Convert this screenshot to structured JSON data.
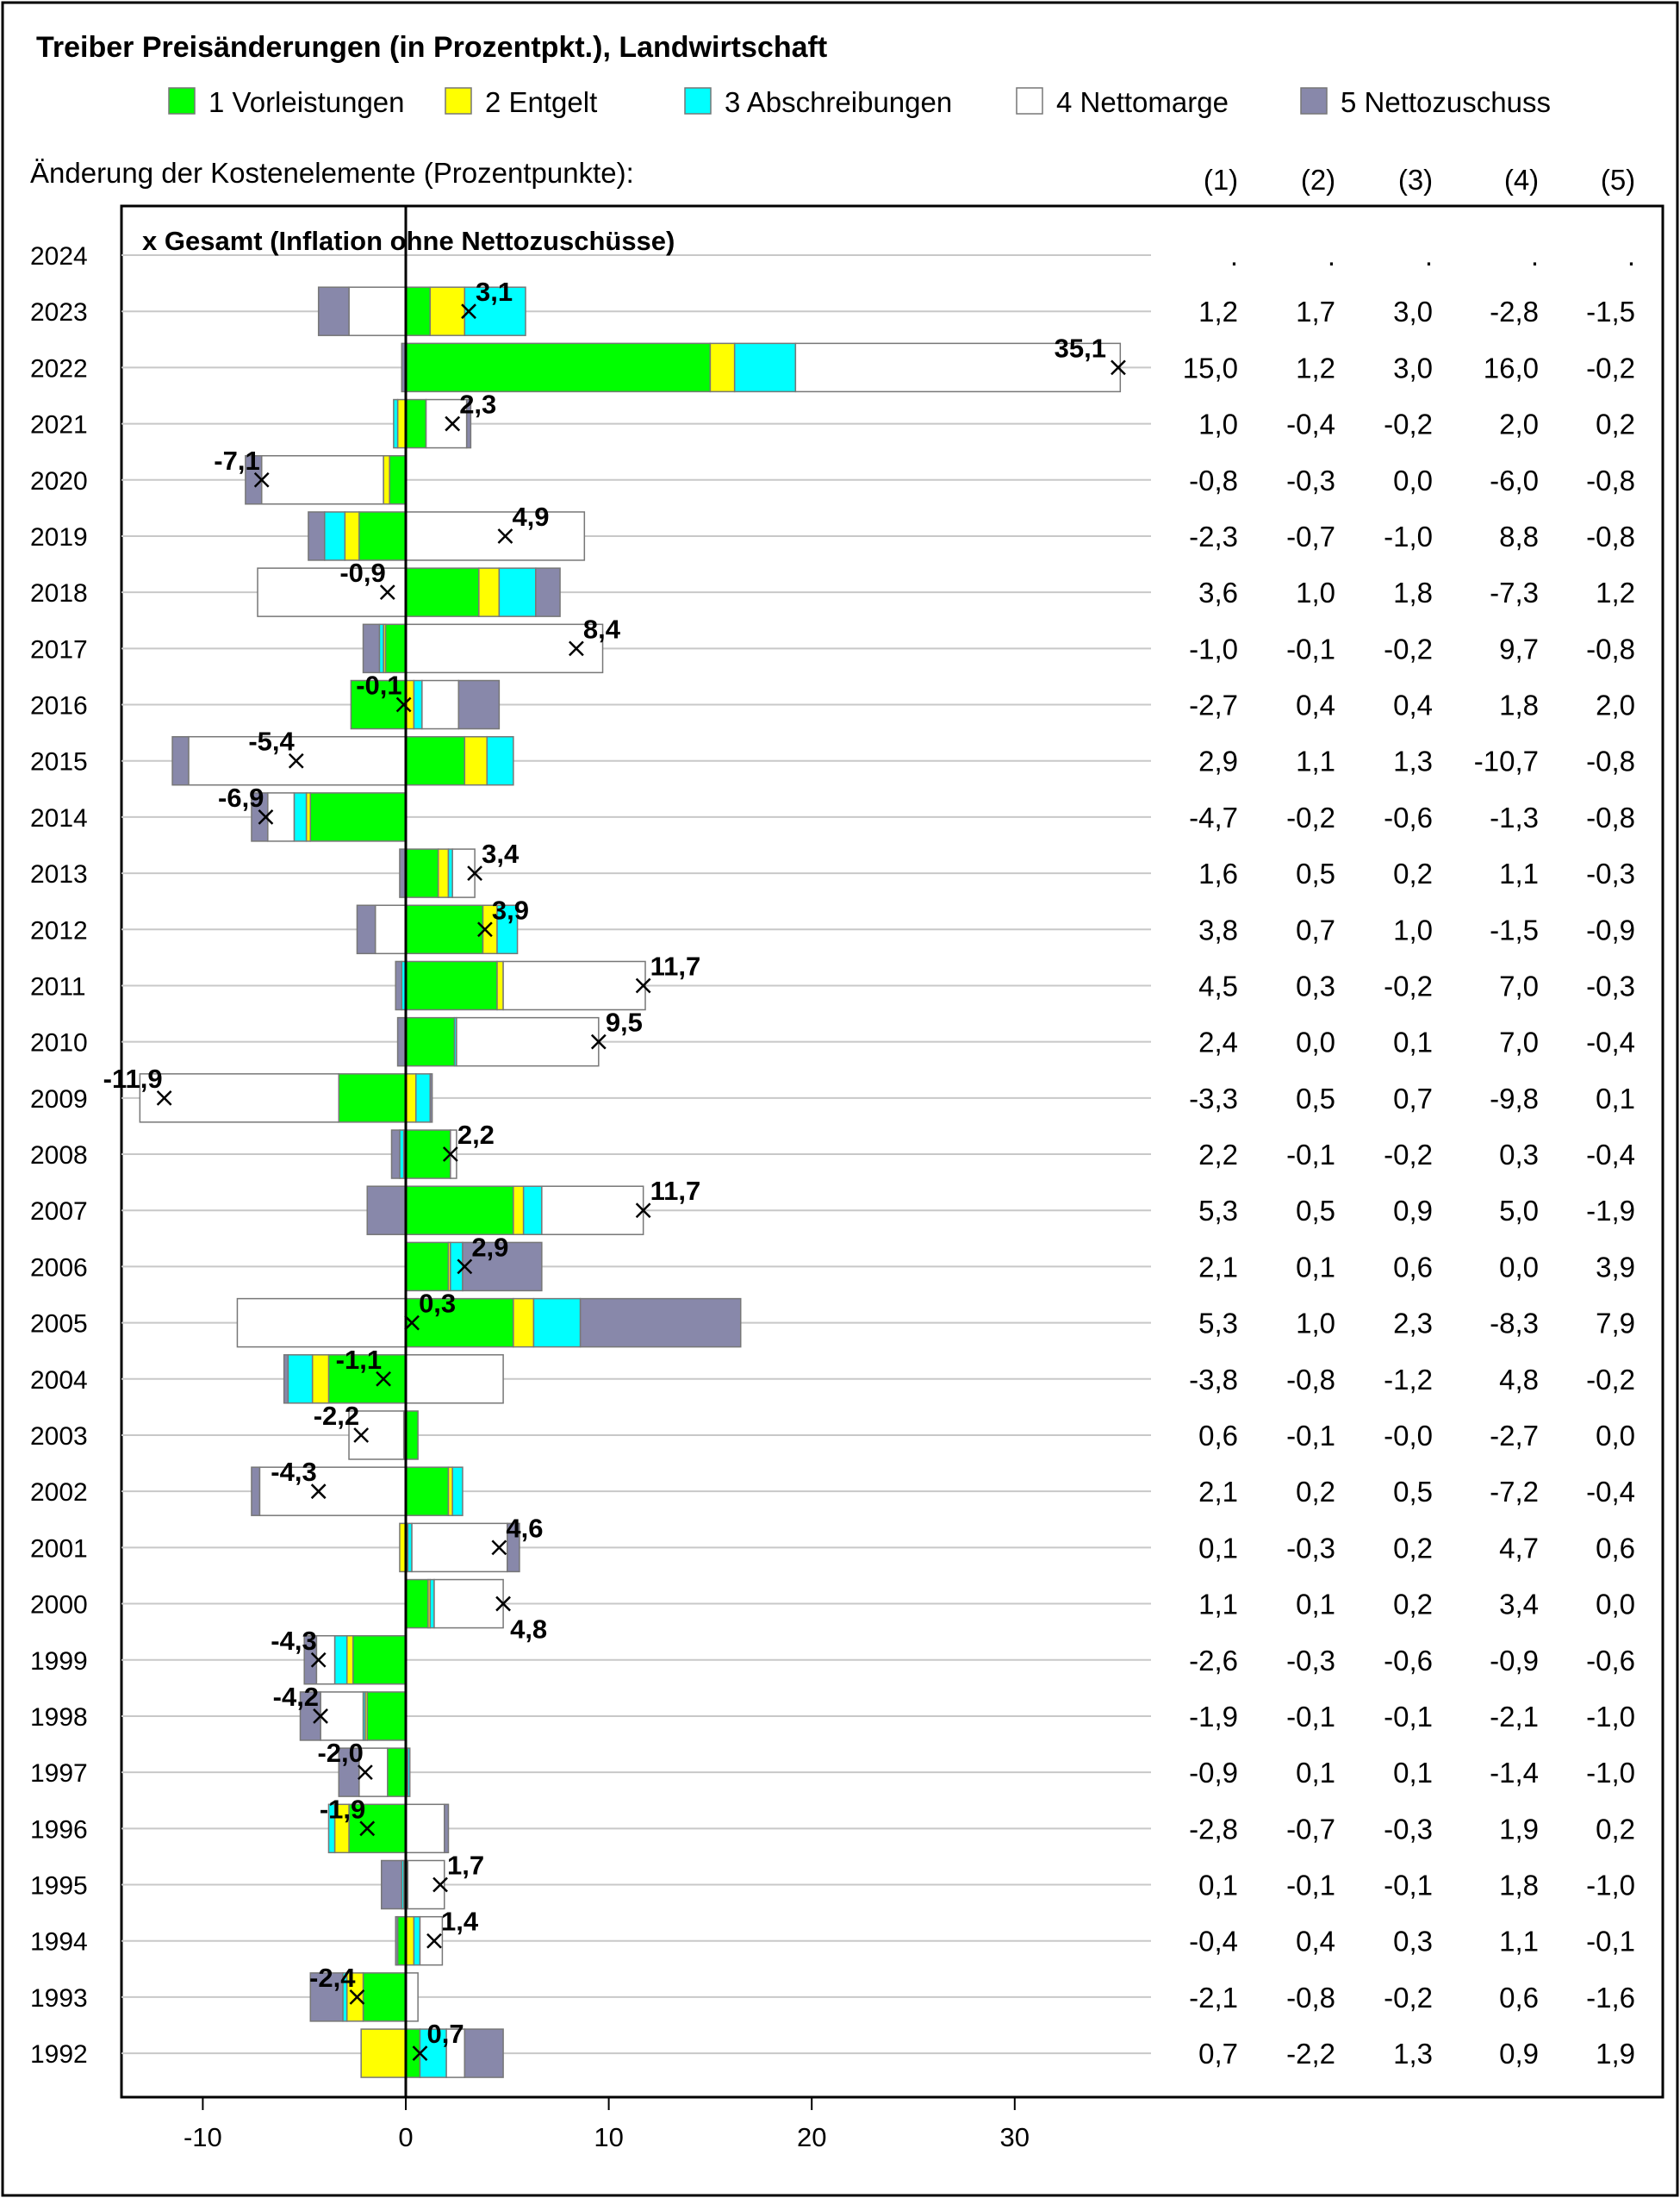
{
  "chart_data": {
    "type": "bar",
    "orientation": "horizontal-stacked",
    "title": "Treiber Preisänderungen (in Prozentpkt.), Landwirtschaft",
    "subtitle": "Änderung der Kostenelemente (Prozentpunkte):",
    "annotation": "x Gesamt (Inflation ohne Nettozuschüsse)",
    "xlim": [
      -14,
      36
    ],
    "xticks": [
      -10,
      0,
      10,
      20,
      30
    ],
    "xtick_labels": [
      "-10",
      "0",
      "10",
      "20",
      "30"
    ],
    "grid": "horizontal",
    "legend_position": "top",
    "table_headers": [
      "(1)",
      "(2)",
      "(3)",
      "(4)",
      "(5)"
    ],
    "series": [
      {
        "name": "1 Vorleistungen",
        "color": "#00ff00"
      },
      {
        "name": "2 Entgelt",
        "color": "#ffff00"
      },
      {
        "name": "3 Abschreibungen",
        "color": "#00ffff"
      },
      {
        "name": "4 Nettomarge",
        "color": "#ffffff"
      },
      {
        "name": "5 Nettozuschuss",
        "color": "#8888aa"
      }
    ],
    "rows": [
      {
        "year": "2024",
        "values": [
          null,
          null,
          null,
          null,
          null
        ],
        "cells": [
          ".",
          ".",
          ".",
          ".",
          "."
        ],
        "total": null,
        "total_label": ""
      },
      {
        "year": "2023",
        "values": [
          1.2,
          1.7,
          3.0,
          -2.8,
          -1.5
        ],
        "cells": [
          "1,2",
          "1,7",
          "3,0",
          "-2,8",
          "-1,5"
        ],
        "total": 3.1,
        "total_label": "3,1"
      },
      {
        "year": "2022",
        "values": [
          15.0,
          1.2,
          3.0,
          16.0,
          -0.2
        ],
        "cells": [
          "15,0",
          "1,2",
          "3,0",
          "16,0",
          "-0,2"
        ],
        "total": 35.1,
        "total_label": "35,1"
      },
      {
        "year": "2021",
        "values": [
          1.0,
          -0.4,
          -0.2,
          2.0,
          0.2
        ],
        "cells": [
          "1,0",
          "-0,4",
          "-0,2",
          "2,0",
          "0,2"
        ],
        "total": 2.3,
        "total_label": "2,3"
      },
      {
        "year": "2020",
        "values": [
          -0.8,
          -0.3,
          0.0,
          -6.0,
          -0.8
        ],
        "cells": [
          "-0,8",
          "-0,3",
          "0,0",
          "-6,0",
          "-0,8"
        ],
        "total": -7.1,
        "total_label": "-7,1"
      },
      {
        "year": "2019",
        "values": [
          -2.3,
          -0.7,
          -1.0,
          8.8,
          -0.8
        ],
        "cells": [
          "-2,3",
          "-0,7",
          "-1,0",
          "8,8",
          "-0,8"
        ],
        "total": 4.9,
        "total_label": "4,9"
      },
      {
        "year": "2018",
        "values": [
          3.6,
          1.0,
          1.8,
          -7.3,
          1.2
        ],
        "cells": [
          "3,6",
          "1,0",
          "1,8",
          "-7,3",
          "1,2"
        ],
        "total": -0.9,
        "total_label": "-0,9"
      },
      {
        "year": "2017",
        "values": [
          -1.0,
          -0.1,
          -0.2,
          9.7,
          -0.8
        ],
        "cells": [
          "-1,0",
          "-0,1",
          "-0,2",
          "9,7",
          "-0,8"
        ],
        "total": 8.4,
        "total_label": "8,4"
      },
      {
        "year": "2016",
        "values": [
          -2.7,
          0.4,
          0.4,
          1.8,
          2.0
        ],
        "cells": [
          "-2,7",
          "0,4",
          "0,4",
          "1,8",
          "2,0"
        ],
        "total": -0.1,
        "total_label": "-0,1"
      },
      {
        "year": "2015",
        "values": [
          2.9,
          1.1,
          1.3,
          -10.7,
          -0.8
        ],
        "cells": [
          "2,9",
          "1,1",
          "1,3",
          "-10,7",
          "-0,8"
        ],
        "total": -5.4,
        "total_label": "-5,4"
      },
      {
        "year": "2014",
        "values": [
          -4.7,
          -0.2,
          -0.6,
          -1.3,
          -0.8
        ],
        "cells": [
          "-4,7",
          "-0,2",
          "-0,6",
          "-1,3",
          "-0,8"
        ],
        "total": -6.9,
        "total_label": "-6,9"
      },
      {
        "year": "2013",
        "values": [
          1.6,
          0.5,
          0.2,
          1.1,
          -0.3
        ],
        "cells": [
          "1,6",
          "0,5",
          "0,2",
          "1,1",
          "-0,3"
        ],
        "total": 3.4,
        "total_label": "3,4"
      },
      {
        "year": "2012",
        "values": [
          3.8,
          0.7,
          1.0,
          -1.5,
          -0.9
        ],
        "cells": [
          "3,8",
          "0,7",
          "1,0",
          "-1,5",
          "-0,9"
        ],
        "total": 3.9,
        "total_label": "3,9"
      },
      {
        "year": "2011",
        "values": [
          4.5,
          0.3,
          -0.2,
          7.0,
          -0.3
        ],
        "cells": [
          "4,5",
          "0,3",
          "-0,2",
          "7,0",
          "-0,3"
        ],
        "total": 11.7,
        "total_label": "11,7"
      },
      {
        "year": "2010",
        "values": [
          2.4,
          0.0,
          0.1,
          7.0,
          -0.4
        ],
        "cells": [
          "2,4",
          "0,0",
          "0,1",
          "7,0",
          "-0,4"
        ],
        "total": 9.5,
        "total_label": "9,5"
      },
      {
        "year": "2009",
        "values": [
          -3.3,
          0.5,
          0.7,
          -9.8,
          0.1
        ],
        "cells": [
          "-3,3",
          "0,5",
          "0,7",
          "-9,8",
          "0,1"
        ],
        "total": -11.9,
        "total_label": "-11,9"
      },
      {
        "year": "2008",
        "values": [
          2.2,
          -0.1,
          -0.2,
          0.3,
          -0.4
        ],
        "cells": [
          "2,2",
          "-0,1",
          "-0,2",
          "0,3",
          "-0,4"
        ],
        "total": 2.2,
        "total_label": "2,2"
      },
      {
        "year": "2007",
        "values": [
          5.3,
          0.5,
          0.9,
          5.0,
          -1.9
        ],
        "cells": [
          "5,3",
          "0,5",
          "0,9",
          "5,0",
          "-1,9"
        ],
        "total": 11.7,
        "total_label": "11,7"
      },
      {
        "year": "2006",
        "values": [
          2.1,
          0.1,
          0.6,
          0.0,
          3.9
        ],
        "cells": [
          "2,1",
          "0,1",
          "0,6",
          "0,0",
          "3,9"
        ],
        "total": 2.9,
        "total_label": "2,9"
      },
      {
        "year": "2005",
        "values": [
          5.3,
          1.0,
          2.3,
          -8.3,
          7.9
        ],
        "cells": [
          "5,3",
          "1,0",
          "2,3",
          "-8,3",
          "7,9"
        ],
        "total": 0.3,
        "total_label": "0,3"
      },
      {
        "year": "2004",
        "values": [
          -3.8,
          -0.8,
          -1.2,
          4.8,
          -0.2
        ],
        "cells": [
          "-3,8",
          "-0,8",
          "-1,2",
          "4,8",
          "-0,2"
        ],
        "total": -1.1,
        "total_label": "-1,1"
      },
      {
        "year": "2003",
        "values": [
          0.6,
          -0.1,
          -0.0,
          -2.7,
          0.0
        ],
        "cells": [
          "0,6",
          "-0,1",
          "-0,0",
          "-2,7",
          "0,0"
        ],
        "total": -2.2,
        "total_label": "-2,2"
      },
      {
        "year": "2002",
        "values": [
          2.1,
          0.2,
          0.5,
          -7.2,
          -0.4
        ],
        "cells": [
          "2,1",
          "0,2",
          "0,5",
          "-7,2",
          "-0,4"
        ],
        "total": -4.3,
        "total_label": "-4,3"
      },
      {
        "year": "2001",
        "values": [
          0.1,
          -0.3,
          0.2,
          4.7,
          0.6
        ],
        "cells": [
          "0,1",
          "-0,3",
          "0,2",
          "4,7",
          "0,6"
        ],
        "total": 4.6,
        "total_label": "4,6"
      },
      {
        "year": "2000",
        "values": [
          1.1,
          0.1,
          0.2,
          3.4,
          0.0
        ],
        "cells": [
          "1,1",
          "0,1",
          "0,2",
          "3,4",
          "0,0"
        ],
        "total": 4.8,
        "total_label": "4,8"
      },
      {
        "year": "1999",
        "values": [
          -2.6,
          -0.3,
          -0.6,
          -0.9,
          -0.6
        ],
        "cells": [
          "-2,6",
          "-0,3",
          "-0,6",
          "-0,9",
          "-0,6"
        ],
        "total": -4.3,
        "total_label": "-4,3"
      },
      {
        "year": "1998",
        "values": [
          -1.9,
          -0.1,
          -0.1,
          -2.1,
          -1.0
        ],
        "cells": [
          "-1,9",
          "-0,1",
          "-0,1",
          "-2,1",
          "-1,0"
        ],
        "total": -4.2,
        "total_label": "-4,2"
      },
      {
        "year": "1997",
        "values": [
          -0.9,
          0.1,
          0.1,
          -1.4,
          -1.0
        ],
        "cells": [
          "-0,9",
          "0,1",
          "0,1",
          "-1,4",
          "-1,0"
        ],
        "total": -2.0,
        "total_label": "-2,0"
      },
      {
        "year": "1996",
        "values": [
          -2.8,
          -0.7,
          -0.3,
          1.9,
          0.2
        ],
        "cells": [
          "-2,8",
          "-0,7",
          "-0,3",
          "1,9",
          "0,2"
        ],
        "total": -1.9,
        "total_label": "-1,9"
      },
      {
        "year": "1995",
        "values": [
          0.1,
          -0.1,
          -0.1,
          1.8,
          -1.0
        ],
        "cells": [
          "0,1",
          "-0,1",
          "-0,1",
          "1,8",
          "-1,0"
        ],
        "total": 1.7,
        "total_label": "1,7"
      },
      {
        "year": "1994",
        "values": [
          -0.4,
          0.4,
          0.3,
          1.1,
          -0.1
        ],
        "cells": [
          "-0,4",
          "0,4",
          "0,3",
          "1,1",
          "-0,1"
        ],
        "total": 1.4,
        "total_label": "1,4"
      },
      {
        "year": "1993",
        "values": [
          -2.1,
          -0.8,
          -0.2,
          0.6,
          -1.6
        ],
        "cells": [
          "-2,1",
          "-0,8",
          "-0,2",
          "0,6",
          "-1,6"
        ],
        "total": -2.4,
        "total_label": "-2,4"
      },
      {
        "year": "1992",
        "values": [
          0.7,
          -2.2,
          1.3,
          0.9,
          1.9
        ],
        "cells": [
          "0,7",
          "-2,2",
          "1,3",
          "0,9",
          "1,9"
        ],
        "total": 0.7,
        "total_label": "0,7"
      }
    ]
  }
}
